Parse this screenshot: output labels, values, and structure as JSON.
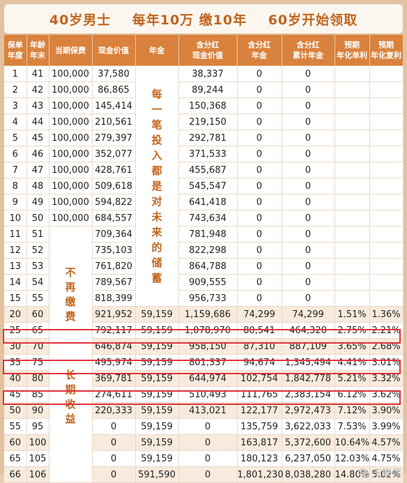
{
  "title": "40岁男士    每年10万 缴10年    60岁开始领取",
  "headers": [
    "保单\n年度",
    "年龄\n年末",
    "当期保费",
    "现金价值",
    "年金",
    "含分红\n现金价值",
    "含分红\n年金",
    "含分红\n累计年金",
    "预期\n年化单利",
    "预期\n年化复利"
  ],
  "annuity_vertical_text": [
    "每",
    "一",
    "笔",
    "投",
    "入",
    "都",
    "是",
    "对",
    "未",
    "来",
    "的",
    "储",
    "蓄"
  ],
  "premium_vertical_text": [
    "不",
    "再",
    "缴",
    "费",
    "",
    "",
    "",
    "长",
    "期",
    "收",
    "益"
  ],
  "rows": [
    [
      "1",
      "41",
      "100,000",
      "37,580",
      "",
      "38,337",
      "0",
      "0",
      "",
      ""
    ],
    [
      "2",
      "42",
      "100,000",
      "86,865",
      "",
      "89,244",
      "0",
      "0",
      "",
      ""
    ],
    [
      "3",
      "43",
      "100,000",
      "145,414",
      "",
      "150,368",
      "0",
      "0",
      "",
      ""
    ],
    [
      "4",
      "44",
      "100,000",
      "210,561",
      "",
      "219,150",
      "0",
      "0",
      "",
      ""
    ],
    [
      "5",
      "45",
      "100,000",
      "279,397",
      "",
      "292,781",
      "0",
      "0",
      "",
      ""
    ],
    [
      "6",
      "46",
      "100,000",
      "352,077",
      "",
      "371,533",
      "0",
      "0",
      "",
      ""
    ],
    [
      "7",
      "47",
      "100,000",
      "428,761",
      "",
      "455,687",
      "0",
      "0",
      "",
      ""
    ],
    [
      "8",
      "48",
      "100,000",
      "509,618",
      "",
      "545,547",
      "0",
      "0",
      "",
      ""
    ],
    [
      "9",
      "49",
      "100,000",
      "594,822",
      "",
      "641,418",
      "0",
      "0",
      "",
      ""
    ],
    [
      "10",
      "50",
      "100,000",
      "684,557",
      "",
      "743,634",
      "0",
      "0",
      "",
      ""
    ],
    [
      "11",
      "51",
      "",
      "709,364",
      "",
      "781,948",
      "0",
      "0",
      "",
      ""
    ],
    [
      "12",
      "52",
      "",
      "735,103",
      "",
      "822,298",
      "0",
      "0",
      "",
      ""
    ],
    [
      "13",
      "53",
      "",
      "761,820",
      "",
      "864,788",
      "0",
      "0",
      "",
      ""
    ],
    [
      "14",
      "54",
      "",
      "789,567",
      "",
      "909,555",
      "0",
      "0",
      "",
      ""
    ],
    [
      "15",
      "55",
      "",
      "818,399",
      "",
      "956,733",
      "0",
      "0",
      "",
      ""
    ],
    [
      "20",
      "60",
      "",
      "921,952",
      "59,159",
      "1,159,686",
      "74,299",
      "74,299",
      "1.51%",
      "1.36%"
    ],
    [
      "25",
      "65",
      "",
      "792,117",
      "59,159",
      "1,078,970",
      "80,541",
      "464,320",
      "2.75%",
      "2.21%"
    ],
    [
      "30",
      "70",
      "",
      "646,874",
      "59,159",
      "958,150",
      "87,310",
      "887,109",
      "3.65%",
      "2.68%"
    ],
    [
      "35",
      "75",
      "",
      "495,974",
      "59,159",
      "801,337",
      "94,674",
      "1,345,494",
      "4.41%",
      "3.01%"
    ],
    [
      "40",
      "80",
      "",
      "369,781",
      "59,159",
      "644,974",
      "102,754",
      "1,842,778",
      "5.21%",
      "3.32%"
    ],
    [
      "45",
      "85",
      "",
      "274,611",
      "59,159",
      "510,493",
      "111,765",
      "2,383,154",
      "6.12%",
      "3.62%"
    ],
    [
      "50",
      "90",
      "",
      "220,333",
      "59,159",
      "413,021",
      "122,177",
      "2,972,473",
      "7.12%",
      "3.90%"
    ],
    [
      "55",
      "95",
      "",
      "0",
      "59,159",
      "0",
      "135,759",
      "3,622,033",
      "7.53%",
      "3.99%"
    ],
    [
      "60",
      "100",
      "",
      "0",
      "59,159",
      "0",
      "163,817",
      "5,372,600",
      "10.64%",
      "4.57%"
    ],
    [
      "65",
      "105",
      "",
      "0",
      "59,159",
      "0",
      "180,123",
      "6,237,050",
      "12.03%",
      "4.75%"
    ],
    [
      "66",
      "106",
      "",
      "0",
      "591,590",
      "0",
      "1,801,230",
      "8,038,280",
      "14.80%",
      "5.02%"
    ]
  ],
  "watermark": "天眼保",
  "colors": {
    "header": "#d9823d",
    "accent": "#c0651e",
    "highlight": "#e0323a"
  }
}
